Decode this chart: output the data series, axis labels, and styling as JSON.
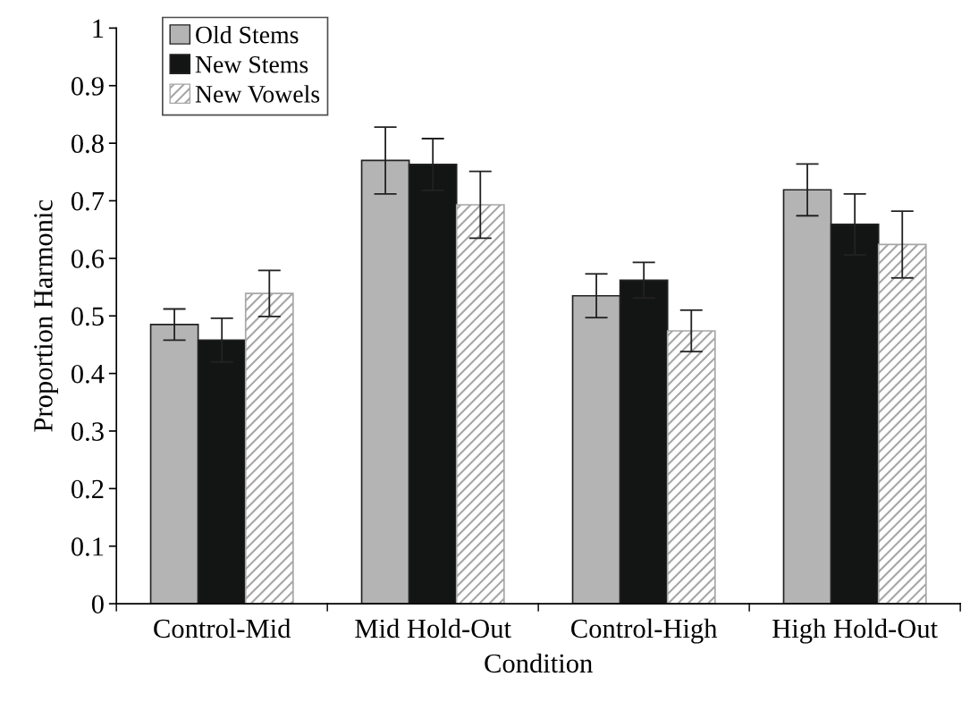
{
  "chart_data": {
    "type": "bar",
    "xlabel": "Condition",
    "ylabel": "Proportion Harmonic",
    "categories": [
      "Control-Mid",
      "Mid Hold-Out",
      "Control-High",
      "High Hold-Out"
    ],
    "series": [
      {
        "name": "Old Stems",
        "color": "#b3b4b3",
        "values": [
          0.485,
          0.77,
          0.535,
          0.719
        ],
        "errors": [
          0.027,
          0.058,
          0.038,
          0.045
        ]
      },
      {
        "name": "New Stems",
        "color": "#131514",
        "values": [
          0.458,
          0.763,
          0.562,
          0.659
        ],
        "errors": [
          0.038,
          0.045,
          0.031,
          0.053
        ]
      },
      {
        "name": "New Vowels",
        "color": "#a6a6a6",
        "values": [
          0.539,
          0.693,
          0.474,
          0.624
        ],
        "errors": [
          0.04,
          0.058,
          0.036,
          0.058
        ]
      }
    ],
    "ylim": [
      0,
      1
    ],
    "yticks": [
      0,
      0.1,
      0.2,
      0.3,
      0.4,
      0.5,
      0.6,
      0.7,
      0.8,
      0.9,
      1
    ],
    "grid": false,
    "legend": "top left"
  }
}
